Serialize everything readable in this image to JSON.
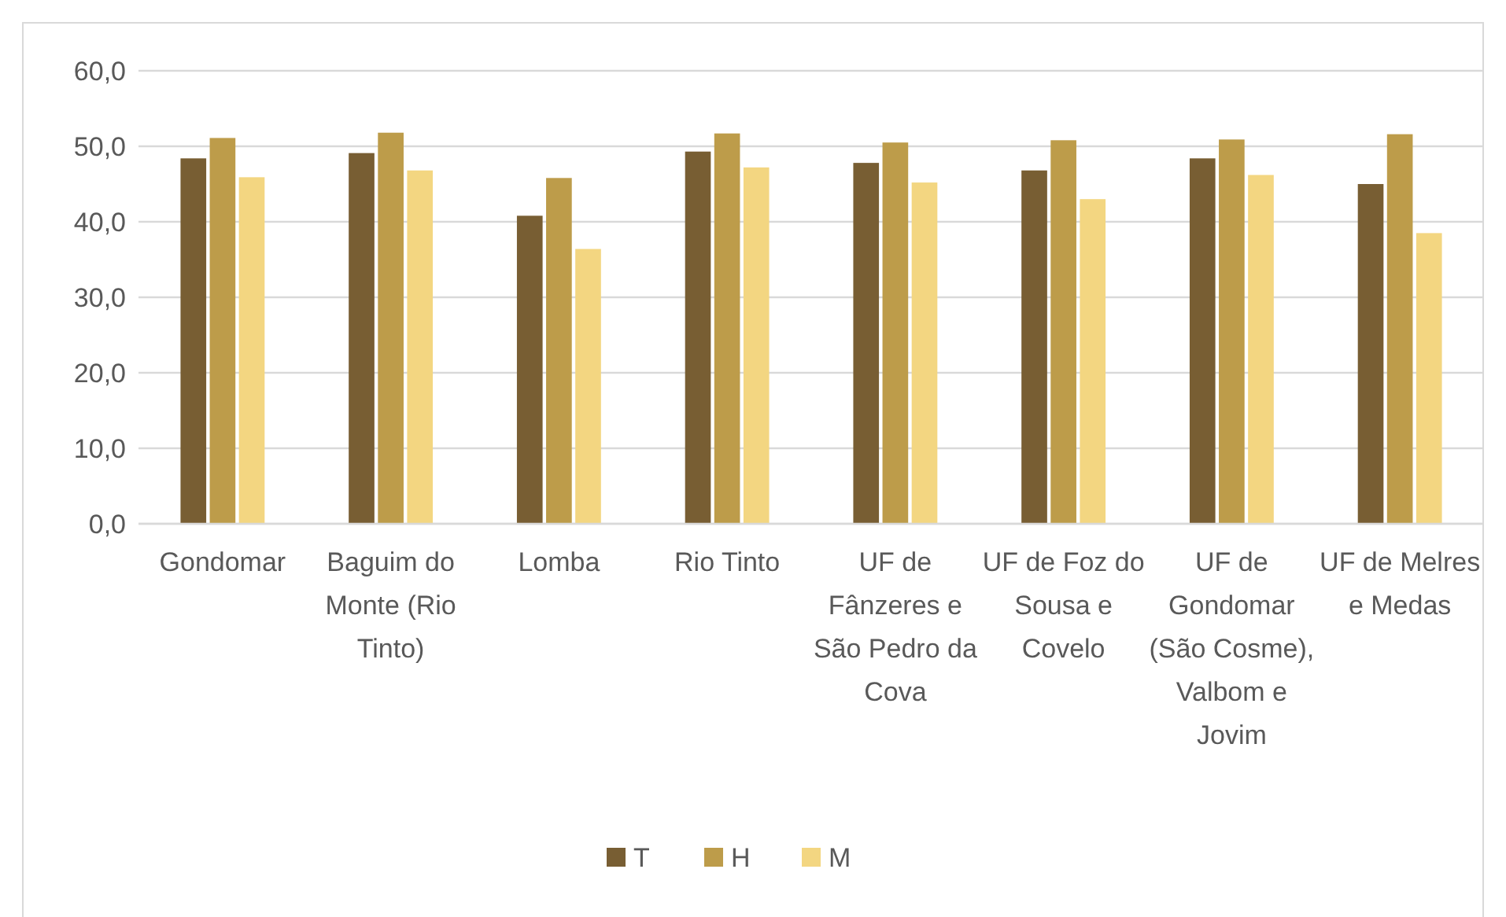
{
  "chart_data": {
    "type": "bar",
    "categories": [
      "Gondomar",
      "Baguim do Monte (Rio Tinto)",
      "Lomba",
      "Rio Tinto",
      "UF de Fânzeres e São Pedro da Cova",
      "UF de Foz do Sousa e Covelo",
      "UF de Gondomar (São Cosme), Valbom e Jovim",
      "UF de Melres e Medas"
    ],
    "series": [
      {
        "name": "T",
        "color": "#785e33",
        "values": [
          48.4,
          49.1,
          40.8,
          49.3,
          47.8,
          46.8,
          48.4,
          45.0
        ]
      },
      {
        "name": "H",
        "color": "#bd9c4a",
        "values": [
          51.1,
          51.8,
          45.8,
          51.7,
          50.5,
          50.8,
          50.9,
          51.6
        ]
      },
      {
        "name": "M",
        "color": "#f3d681",
        "values": [
          45.9,
          46.8,
          36.4,
          47.2,
          45.2,
          43.0,
          46.2,
          38.5
        ]
      }
    ],
    "ylim": [
      0,
      60
    ],
    "yticks": [
      {
        "value": 0,
        "label": "0,0"
      },
      {
        "value": 10,
        "label": "10,0"
      },
      {
        "value": 20,
        "label": "20,0"
      },
      {
        "value": 30,
        "label": "30,0"
      },
      {
        "value": 40,
        "label": "40,0"
      },
      {
        "value": 50,
        "label": "50,0"
      },
      {
        "value": 60,
        "label": "60,0"
      }
    ],
    "grid": "y",
    "legend": "bottom"
  }
}
